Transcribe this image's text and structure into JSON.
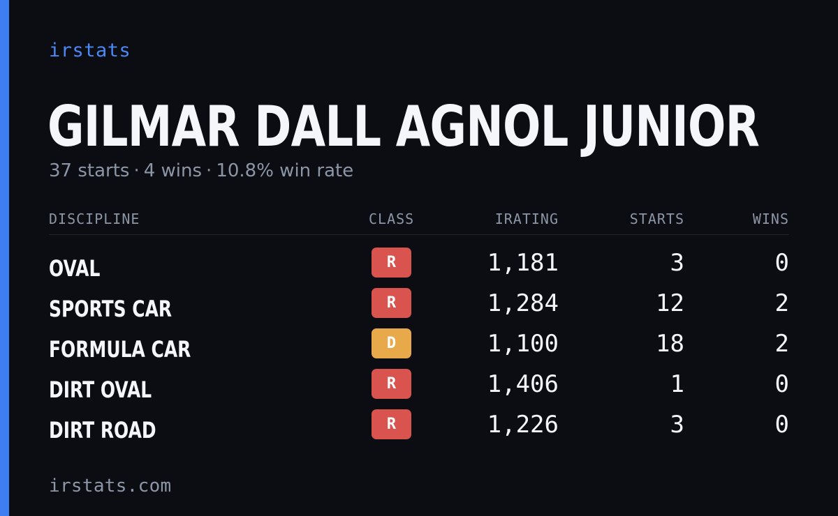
{
  "brand": "irstats",
  "player": {
    "name": "GILMAR DALL AGNOL JUNIOR",
    "starts_text": "37 starts",
    "wins_text": "4 wins",
    "win_rate_text": "10.8% win rate",
    "separator": "·"
  },
  "table": {
    "headers": {
      "discipline": "DISCIPLINE",
      "class": "CLASS",
      "irating": "IRATING",
      "starts": "STARTS",
      "wins": "WINS"
    },
    "rows": [
      {
        "discipline": "OVAL",
        "class": "R",
        "class_color": "#d9534f",
        "irating": "1,181",
        "starts": "3",
        "wins": "0"
      },
      {
        "discipline": "SPORTS CAR",
        "class": "R",
        "class_color": "#d9534f",
        "irating": "1,284",
        "starts": "12",
        "wins": "2"
      },
      {
        "discipline": "FORMULA CAR",
        "class": "D",
        "class_color": "#e8a94a",
        "irating": "1,100",
        "starts": "18",
        "wins": "2"
      },
      {
        "discipline": "DIRT OVAL",
        "class": "R",
        "class_color": "#d9534f",
        "irating": "1,406",
        "starts": "1",
        "wins": "0"
      },
      {
        "discipline": "DIRT ROAD",
        "class": "R",
        "class_color": "#d9534f",
        "irating": "1,226",
        "starts": "3",
        "wins": "0"
      }
    ]
  },
  "footer": {
    "url": "irstats.com"
  },
  "colors": {
    "background": "#0b0d13",
    "accent": "#3d7ff0",
    "brand": "#4a88f5",
    "text_primary": "#f4f6fa",
    "text_muted": "#8d96a6"
  }
}
